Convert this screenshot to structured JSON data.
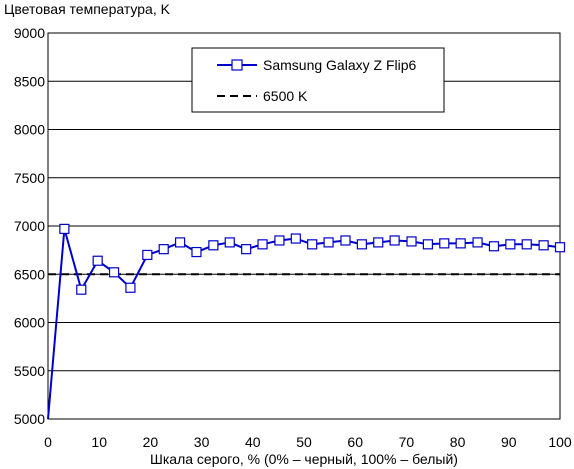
{
  "chart_data": {
    "type": "line",
    "ylabel": "Цветовая температура, K",
    "xlabel": "Шкала серого, % (0% – черный, 100% – белый)",
    "xlim": [
      0,
      100
    ],
    "ylim": [
      5000,
      9000
    ],
    "x_ticks": [
      0,
      10,
      20,
      30,
      40,
      50,
      60,
      70,
      80,
      90,
      100
    ],
    "y_ticks": [
      5000,
      5500,
      6000,
      6500,
      7000,
      7500,
      8000,
      8500,
      9000
    ],
    "grid": "horizontal",
    "legend_position": "top-right",
    "series": [
      {
        "name": "Samsung Galaxy Z Flip6",
        "color": "#0000cc",
        "marker": "open-square",
        "x": [
          0,
          3.2,
          6.5,
          9.7,
          12.9,
          16.1,
          19.4,
          22.6,
          25.8,
          29.0,
          32.3,
          35.5,
          38.7,
          41.9,
          45.2,
          48.4,
          51.6,
          54.8,
          58.1,
          61.3,
          64.5,
          67.7,
          71.0,
          74.2,
          77.4,
          80.6,
          83.9,
          87.1,
          90.3,
          93.5,
          96.8,
          100
        ],
        "y": [
          5000,
          6970,
          6340,
          6640,
          6520,
          6360,
          6700,
          6760,
          6830,
          6730,
          6800,
          6830,
          6760,
          6810,
          6850,
          6870,
          6810,
          6830,
          6850,
          6810,
          6830,
          6850,
          6840,
          6810,
          6820,
          6820,
          6830,
          6790,
          6810,
          6810,
          6800,
          6780
        ]
      },
      {
        "name": "6500 K",
        "color": "#000000",
        "dash": "dashed",
        "x": [
          0,
          100
        ],
        "y": [
          6500,
          6500
        ]
      }
    ]
  }
}
